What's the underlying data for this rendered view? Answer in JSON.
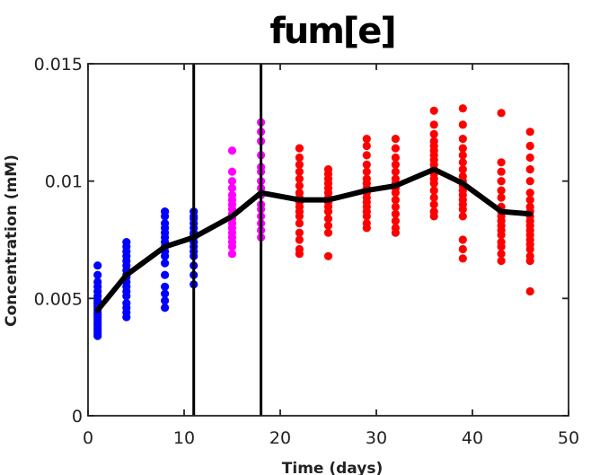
{
  "chart_data": {
    "type": "scatter",
    "title": "fum[e]",
    "xlabel": "Time (days)",
    "ylabel": "Concentration (mM)",
    "xlim": [
      0,
      50
    ],
    "ylim": [
      0,
      0.015
    ],
    "xticks": [
      0,
      10,
      20,
      30,
      40,
      50
    ],
    "xtick_labels": [
      "0",
      "10",
      "20",
      "30",
      "40",
      "50"
    ],
    "yticks": [
      0,
      0.005,
      0.01,
      0.015
    ],
    "ytick_labels": [
      "0",
      "0.005",
      "0.01",
      "0.015"
    ],
    "grid": false,
    "vertical_lines": [
      11,
      18
    ],
    "colors": {
      "phase1": "#0000ff",
      "phase2": "#ff00ff",
      "phase3": "#ff0000",
      "mean": "#000000",
      "axis": "#222222"
    },
    "scatter_groups": [
      {
        "x": 1,
        "color": "phase1",
        "values": [
          0.0034,
          0.0035,
          0.0036,
          0.0037,
          0.0038,
          0.0039,
          0.004,
          0.0041,
          0.0042,
          0.0043,
          0.0044,
          0.0045,
          0.0046,
          0.0047,
          0.0048,
          0.0049,
          0.0051,
          0.0053,
          0.0055,
          0.0057,
          0.006,
          0.0064
        ]
      },
      {
        "x": 4,
        "color": "phase1",
        "values": [
          0.0042,
          0.0044,
          0.0046,
          0.0048,
          0.0051,
          0.0053,
          0.0055,
          0.0057,
          0.0059,
          0.006,
          0.0062,
          0.0064,
          0.0066,
          0.0068,
          0.007,
          0.0072,
          0.0074
        ]
      },
      {
        "x": 8,
        "color": "phase1",
        "values": [
          0.0046,
          0.0049,
          0.0052,
          0.0055,
          0.006,
          0.0065,
          0.0068,
          0.007,
          0.0072,
          0.0074,
          0.0076,
          0.0078,
          0.008,
          0.0082,
          0.0085,
          0.0087
        ]
      },
      {
        "x": 11,
        "color": "phase1",
        "values": [
          0.0056,
          0.006,
          0.0064,
          0.0068,
          0.007,
          0.0072,
          0.0074,
          0.0076,
          0.0077,
          0.0078,
          0.008,
          0.0082,
          0.0084,
          0.0085,
          0.0087
        ]
      },
      {
        "x": 15,
        "color": "phase2",
        "values": [
          0.0069,
          0.0072,
          0.0074,
          0.0076,
          0.0078,
          0.008,
          0.0082,
          0.0084,
          0.0086,
          0.0088,
          0.009,
          0.0092,
          0.0094,
          0.0097,
          0.01,
          0.0104,
          0.0113
        ]
      },
      {
        "x": 18,
        "color": "phase2",
        "values": [
          0.0076,
          0.0079,
          0.0082,
          0.0085,
          0.0088,
          0.009,
          0.0094,
          0.0097,
          0.01,
          0.0104,
          0.0106,
          0.0111,
          0.0117,
          0.0121,
          0.0125
        ]
      },
      {
        "x": 22,
        "color": "phase3",
        "values": [
          0.0069,
          0.0071,
          0.0075,
          0.0078,
          0.0082,
          0.0085,
          0.0087,
          0.0089,
          0.0091,
          0.0093,
          0.0095,
          0.0098,
          0.0101,
          0.0104,
          0.0107,
          0.011,
          0.0114
        ]
      },
      {
        "x": 25,
        "color": "phase3",
        "values": [
          0.0068,
          0.0078,
          0.0081,
          0.0084,
          0.0087,
          0.0089,
          0.0091,
          0.0093,
          0.0095,
          0.0097,
          0.0099,
          0.0101,
          0.0103,
          0.0105
        ]
      },
      {
        "x": 29,
        "color": "phase3",
        "values": [
          0.008,
          0.0082,
          0.0085,
          0.0087,
          0.0089,
          0.0091,
          0.0093,
          0.0095,
          0.0097,
          0.0099,
          0.0101,
          0.0104,
          0.0107,
          0.0111,
          0.0115,
          0.0118
        ]
      },
      {
        "x": 32,
        "color": "phase3",
        "values": [
          0.0078,
          0.008,
          0.0083,
          0.0086,
          0.0089,
          0.0092,
          0.0095,
          0.0097,
          0.0099,
          0.0101,
          0.0104,
          0.0107,
          0.011,
          0.0114,
          0.0118
        ]
      },
      {
        "x": 36,
        "color": "phase3",
        "values": [
          0.0085,
          0.0087,
          0.009,
          0.0093,
          0.0096,
          0.0099,
          0.0101,
          0.0103,
          0.0105,
          0.0107,
          0.0109,
          0.0111,
          0.0113,
          0.0115,
          0.0117,
          0.012,
          0.0124,
          0.013
        ]
      },
      {
        "x": 39,
        "color": "phase3",
        "values": [
          0.0067,
          0.0071,
          0.0075,
          0.0085,
          0.0088,
          0.009,
          0.0092,
          0.0094,
          0.0096,
          0.0098,
          0.01,
          0.0102,
          0.0105,
          0.0108,
          0.0111,
          0.0114,
          0.0118,
          0.0124,
          0.0131
        ]
      },
      {
        "x": 43,
        "color": "phase3",
        "values": [
          0.0066,
          0.0069,
          0.0072,
          0.0074,
          0.0077,
          0.0079,
          0.0081,
          0.0083,
          0.0085,
          0.0087,
          0.0089,
          0.0093,
          0.0096,
          0.01,
          0.0104,
          0.0108,
          0.0129
        ]
      },
      {
        "x": 46,
        "color": "phase3",
        "values": [
          0.0053,
          0.0066,
          0.0068,
          0.0071,
          0.0073,
          0.0075,
          0.0077,
          0.0079,
          0.0081,
          0.0083,
          0.0085,
          0.0087,
          0.0089,
          0.0092,
          0.0095,
          0.01,
          0.0105,
          0.011,
          0.0115,
          0.0121
        ]
      }
    ],
    "mean_line": {
      "x": [
        1,
        4,
        8,
        11,
        15,
        18,
        22,
        25,
        29,
        32,
        36,
        39,
        43,
        46
      ],
      "y": [
        0.0045,
        0.006,
        0.0072,
        0.0076,
        0.0085,
        0.0095,
        0.0092,
        0.0092,
        0.0096,
        0.0098,
        0.0105,
        0.0099,
        0.0087,
        0.0086
      ]
    }
  }
}
